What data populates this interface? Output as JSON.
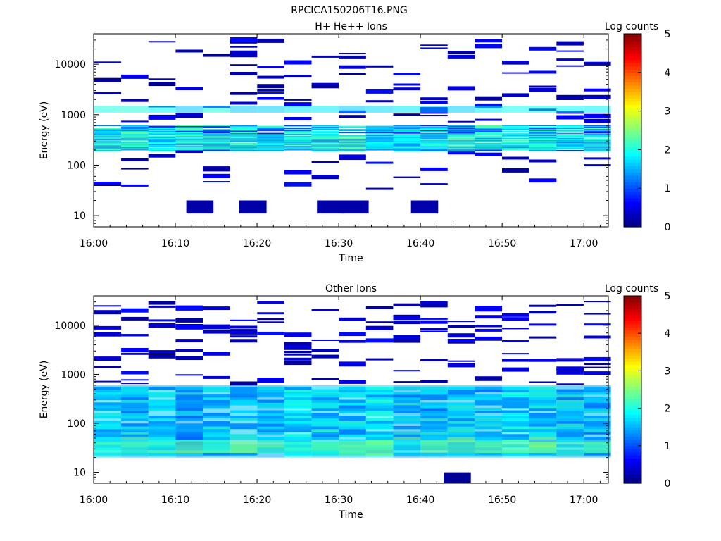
{
  "figure_title": "RPCICA150206T16.PNG",
  "chart_data": [
    {
      "type": "heatmap",
      "title": "H+ He++ Ions",
      "xlabel": "Time",
      "ylabel": "Energy (eV)",
      "x_ticks": [
        "16:00",
        "16:10",
        "16:20",
        "16:30",
        "16:40",
        "16:50",
        "17:00"
      ],
      "x_range_minutes": [
        0,
        63
      ],
      "y_ticks": [
        "10",
        "100",
        "1000",
        "10000"
      ],
      "y_scale": "log",
      "y_range": [
        6,
        40000
      ],
      "colorbar": {
        "label": "Log counts",
        "ticks": [
          "0",
          "1",
          "2",
          "3",
          "4",
          "5"
        ],
        "range": [
          0,
          5
        ],
        "colormap": "jet"
      },
      "bands": [
        {
          "e_lo": 200,
          "e_hi": 400,
          "level": 2.0,
          "cells": 18
        },
        {
          "e_lo": 1100,
          "e_hi": 1500,
          "level": 1.8,
          "cells": 10
        },
        {
          "e_lo": 11,
          "e_hi": 20,
          "level": 0.2,
          "times": [
            13.0,
            19.5,
            29.0,
            32.0,
            40.5
          ]
        }
      ]
    },
    {
      "type": "heatmap",
      "title": "Other Ions",
      "xlabel": "Time",
      "ylabel": "Energy (eV)",
      "x_ticks": [
        "16:00",
        "16:10",
        "16:20",
        "16:30",
        "16:40",
        "16:50",
        "17:00"
      ],
      "x_range_minutes": [
        0,
        63
      ],
      "y_ticks": [
        "10",
        "100",
        "1000",
        "10000"
      ],
      "y_scale": "log",
      "y_range": [
        6,
        40000
      ],
      "colorbar": {
        "label": "Log counts",
        "ticks": [
          "0",
          "1",
          "2",
          "3",
          "4",
          "5"
        ],
        "range": [
          0,
          5
        ],
        "colormap": "jet"
      },
      "bands": [
        {
          "e_lo": 20,
          "e_hi": 600,
          "level": 1.6,
          "cells": 20
        },
        {
          "e_lo": 25,
          "e_hi": 45,
          "level": 2.3,
          "cells": 20
        },
        {
          "e_lo": 6,
          "e_hi": 10,
          "level": 0.1,
          "times": [
            44.5
          ]
        }
      ]
    }
  ]
}
